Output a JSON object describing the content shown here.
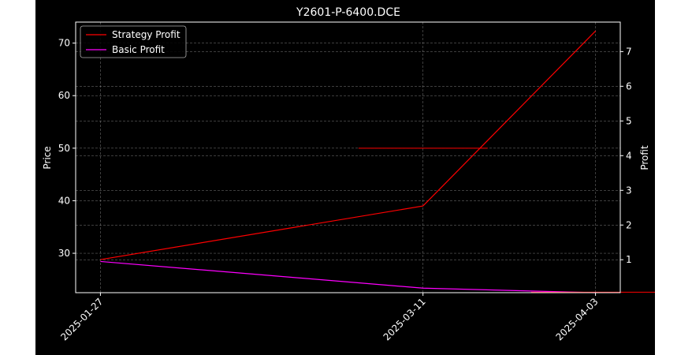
{
  "chart_data": {
    "type": "line",
    "title": "Y2601-P-6400.DCE",
    "xlabel": "",
    "ylabel": "Price",
    "ylabel_right": "Profit",
    "x": [
      "2025-01-27",
      "2025-03-11",
      "2025-04-03"
    ],
    "x_ticks": [
      "2025-01-27",
      "2025-03-11",
      "2025-04-03"
    ],
    "y_ticks": [
      30,
      40,
      50,
      60,
      70
    ],
    "y_right_ticks": [
      1,
      2,
      3,
      4,
      5,
      6,
      7
    ],
    "ylim": [
      22.5,
      74
    ],
    "ylim_right": [
      0.05,
      7.85
    ],
    "grid": true,
    "legend_position": "upper-left",
    "series": [
      {
        "name": "Strategy Profit",
        "axis": "left",
        "color": "#ff0000",
        "values": [
          28.8,
          39.0,
          72.3
        ]
      },
      {
        "name": "Basic Profit",
        "axis": "right",
        "color": "#ff00ff",
        "values": [
          0.95,
          0.18,
          0.05
        ]
      }
    ],
    "price_markers": [
      {
        "x": "2025-03-11",
        "value": 50.0,
        "color": "#ff0000"
      },
      {
        "x": "2025-04-03",
        "value": 22.6,
        "color": "#ff0000"
      }
    ]
  }
}
